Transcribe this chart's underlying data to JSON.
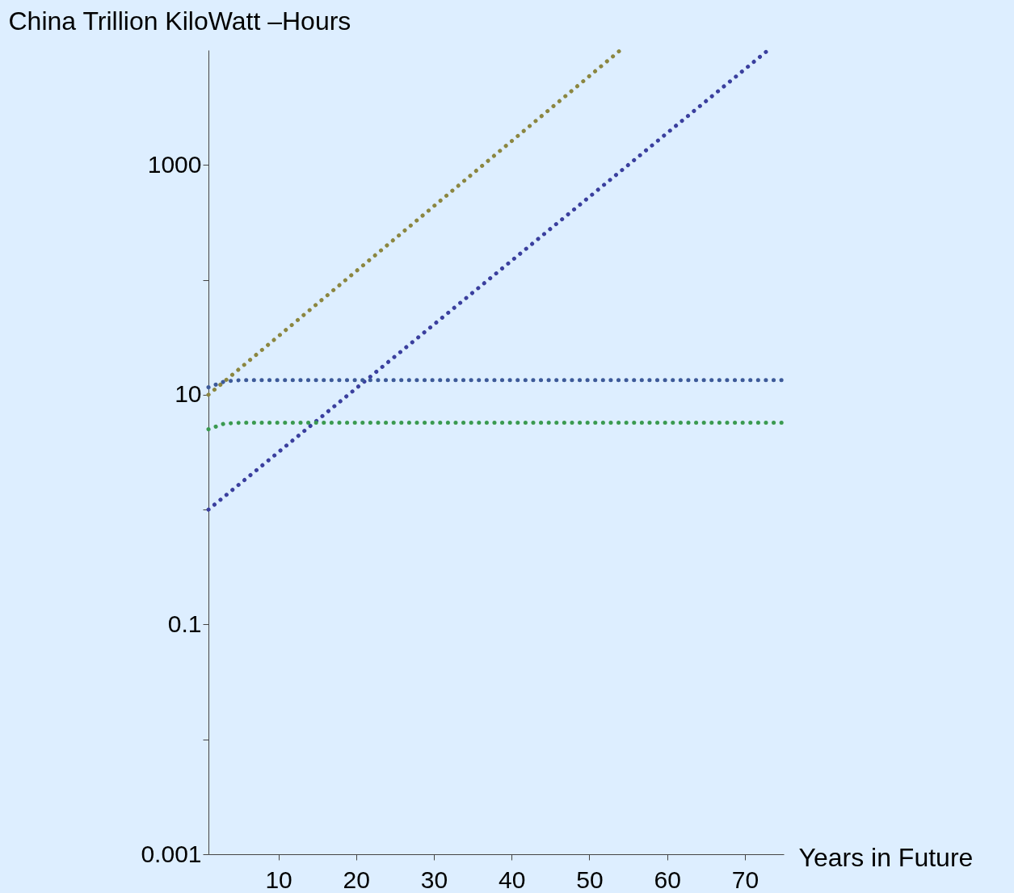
{
  "chart_data": {
    "type": "line",
    "ylabel": "China Trillion KiloWatt –Hours",
    "xlabel": "Years  in Future",
    "log": "y",
    "grid": false,
    "legend": false,
    "line_style": "dotted",
    "marker": "none",
    "xlim": [
      1,
      75
    ],
    "xticks": [
      10,
      20,
      30,
      40,
      50,
      60,
      70
    ],
    "ylim": [
      0.001,
      10000
    ],
    "yticks": [
      0.001,
      {
        "value": 0.01,
        "label": null
      },
      0.1,
      {
        "value": 1,
        "label": null
      },
      10,
      {
        "value": 100,
        "label": null
      },
      1000
    ],
    "series": [
      {
        "color": "#8b8640",
        "x": [
          1,
          54
        ],
        "values": [
          10,
          10000
        ]
      },
      {
        "color": "#3a3f9e",
        "x": [
          1,
          73
        ],
        "values": [
          1,
          10000
        ]
      },
      {
        "color": "#3d5a99",
        "x": [
          1,
          3,
          5,
          75
        ],
        "values": [
          11.6,
          13,
          13.4,
          13.4
        ]
      },
      {
        "color": "#3a9a50",
        "x": [
          1,
          3,
          5,
          75
        ],
        "values": [
          5,
          5.6,
          5.7,
          5.7
        ]
      }
    ]
  }
}
